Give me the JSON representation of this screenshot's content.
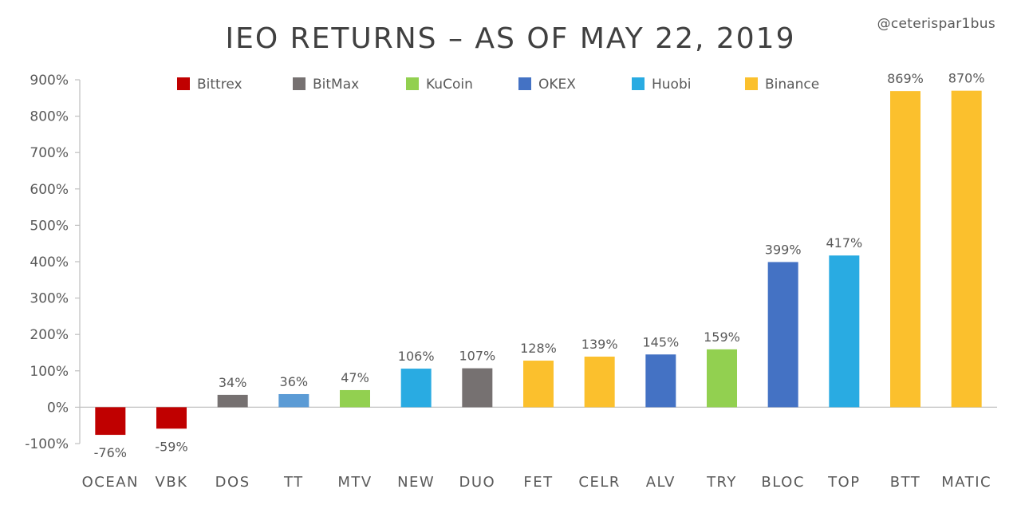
{
  "credit": "@ceterispar1bus",
  "chart_data": {
    "type": "bar",
    "title": "IEO RETURNS – AS OF MAY 22, 2019",
    "xlabel": "",
    "ylabel": "",
    "ylim": [
      -100,
      900
    ],
    "yticks": [
      -100,
      0,
      100,
      200,
      300,
      400,
      500,
      600,
      700,
      800,
      900
    ],
    "ytick_labels": [
      "-100%",
      "0%",
      "100%",
      "200%",
      "300%",
      "400%",
      "500%",
      "600%",
      "700%",
      "800%",
      "900%"
    ],
    "grid": false,
    "legend_position": "top",
    "legend": [
      {
        "name": "Bittrex",
        "color": "#C00000"
      },
      {
        "name": "BitMax",
        "color": "#767171"
      },
      {
        "name": "KuCoin",
        "color": "#92D050"
      },
      {
        "name": "OKEX",
        "color": "#4472C4"
      },
      {
        "name": "Huobi",
        "color": "#29ABE2"
      },
      {
        "name": "Binance",
        "color": "#FBC02D"
      }
    ],
    "bars": [
      {
        "category": "OCEAN",
        "value": -76,
        "label": "-76%",
        "exchange": "Bittrex",
        "color": "#C00000"
      },
      {
        "category": "VBK",
        "value": -59,
        "label": "-59%",
        "exchange": "Bittrex",
        "color": "#C00000"
      },
      {
        "category": "DOS",
        "value": 34,
        "label": "34%",
        "exchange": "BitMax",
        "color": "#767171"
      },
      {
        "category": "TT",
        "value": 36,
        "label": "36%",
        "exchange": "",
        "color": "#5B9BD5"
      },
      {
        "category": "MTV",
        "value": 47,
        "label": "47%",
        "exchange": "KuCoin",
        "color": "#92D050"
      },
      {
        "category": "NEW",
        "value": 106,
        "label": "106%",
        "exchange": "Huobi",
        "color": "#29ABE2"
      },
      {
        "category": "DUO",
        "value": 107,
        "label": "107%",
        "exchange": "BitMax",
        "color": "#767171"
      },
      {
        "category": "FET",
        "value": 128,
        "label": "128%",
        "exchange": "Binance",
        "color": "#FBC02D"
      },
      {
        "category": "CELR",
        "value": 139,
        "label": "139%",
        "exchange": "Binance",
        "color": "#FBC02D"
      },
      {
        "category": "ALV",
        "value": 145,
        "label": "145%",
        "exchange": "OKEX",
        "color": "#4472C4"
      },
      {
        "category": "TRY",
        "value": 159,
        "label": "159%",
        "exchange": "KuCoin",
        "color": "#92D050"
      },
      {
        "category": "BLOC",
        "value": 399,
        "label": "399%",
        "exchange": "OKEX",
        "color": "#4472C4"
      },
      {
        "category": "TOP",
        "value": 417,
        "label": "417%",
        "exchange": "Huobi",
        "color": "#29ABE2"
      },
      {
        "category": "BTT",
        "value": 869,
        "label": "869%",
        "exchange": "Binance",
        "color": "#FBC02D"
      },
      {
        "category": "MATIC",
        "value": 870,
        "label": "870%",
        "exchange": "Binance",
        "color": "#FBC02D"
      }
    ]
  }
}
